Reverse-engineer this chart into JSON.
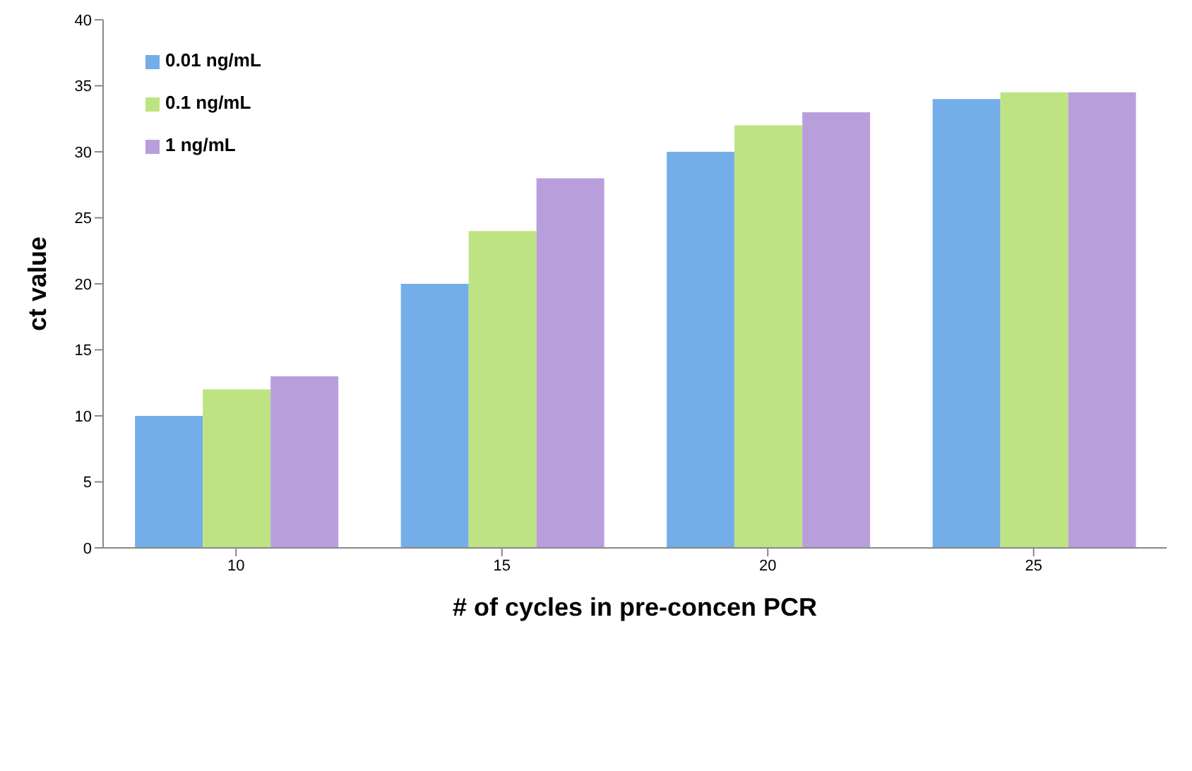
{
  "chart_data": {
    "type": "bar",
    "xlabel": "# of cycles in pre-concen PCR",
    "ylabel": "ct value",
    "categories": [
      "10",
      "15",
      "20",
      "25"
    ],
    "series": [
      {
        "name": "0.01 ng/mL",
        "color": "#74aee8",
        "values": [
          10,
          20,
          30,
          34
        ]
      },
      {
        "name": "0.1 ng/mL",
        "color": "#bde383",
        "values": [
          12,
          24,
          32,
          34.5
        ]
      },
      {
        "name": "1 ng/mL",
        "color": "#b89fdc",
        "values": [
          13,
          28,
          33,
          34.5
        ]
      }
    ],
    "ylim": [
      0,
      40
    ],
    "yticks": [
      0,
      5,
      10,
      15,
      20,
      25,
      30,
      35,
      40
    ],
    "grid": false,
    "legend": "top left"
  }
}
